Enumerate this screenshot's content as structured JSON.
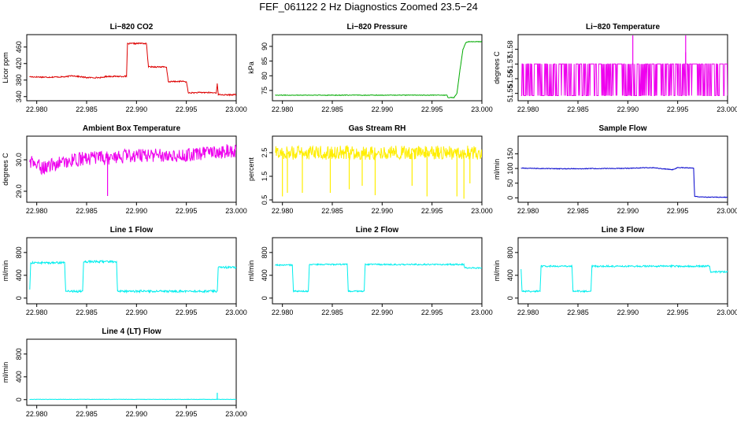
{
  "figure": {
    "title": "FEF_061122  2 Hz Diagnostics Zoomed 23.5−24"
  },
  "chart_data": [
    {
      "type": "line",
      "title": "Li−820 CO2",
      "ylabel": "Licor ppm",
      "color": "#dd0000",
      "xlim": [
        22.979,
        23.0
      ],
      "ylim": [
        330,
        490
      ],
      "xticks": [
        22.98,
        22.985,
        22.99,
        22.995,
        23.0
      ],
      "xtick_labels": [
        "22.980",
        "22.985",
        "22.990",
        "22.995",
        "23.000"
      ],
      "yticks": [
        340,
        380,
        420,
        460
      ],
      "ytick_labels": [
        "340",
        "380",
        "420",
        "460"
      ],
      "series": [
        {
          "x": [
            22.9793,
            22.981,
            22.983,
            22.9835,
            22.985,
            22.9865,
            22.987,
            22.989,
            22.9891,
            22.9905,
            22.991,
            22.9912,
            22.9925,
            22.993,
            22.9932,
            22.9945,
            22.995,
            22.9952,
            22.9968,
            22.998,
            22.9981,
            22.9982,
            22.999,
            23.0
          ],
          "y": [
            388,
            387,
            388,
            391,
            386,
            386,
            389,
            389,
            468,
            469,
            468,
            412,
            412,
            411,
            376,
            377,
            376,
            349,
            350,
            349,
            372,
            345,
            344,
            345
          ],
          "noise": 1.5
        }
      ]
    },
    {
      "type": "line",
      "title": "Li−820 Pressure",
      "ylabel": "kPa",
      "color": "#00aa00",
      "xlim": [
        22.979,
        23.0
      ],
      "ylim": [
        71.5,
        94
      ],
      "xticks": [
        22.98,
        22.985,
        22.99,
        22.995,
        23.0
      ],
      "xtick_labels": [
        "22.980",
        "22.985",
        "22.990",
        "22.995",
        "23.000"
      ],
      "yticks": [
        75,
        80,
        85,
        90
      ],
      "ytick_labels": [
        "75",
        "80",
        "85",
        "90"
      ],
      "series": [
        {
          "x": [
            22.9793,
            22.9965,
            22.9966,
            22.9972,
            22.9975,
            22.9978,
            22.9981,
            22.9984,
            22.9987,
            23.0
          ],
          "y": [
            73.4,
            73.4,
            72.6,
            72.6,
            74.0,
            82.0,
            89.0,
            91.3,
            91.6,
            91.6
          ],
          "noise": 0.1
        }
      ]
    },
    {
      "type": "line",
      "title": "Li−820 Temperature",
      "ylabel": "degrees C",
      "color": "#ee00ee",
      "xlim": [
        22.979,
        23.0
      ],
      "ylim": [
        51.545,
        51.59
      ],
      "xticks": [
        22.98,
        22.985,
        22.99,
        22.995,
        23.0
      ],
      "xtick_labels": [
        "22.980",
        "22.985",
        "22.990",
        "22.995",
        "23.000"
      ],
      "yticks": [
        51.55,
        51.56,
        51.57,
        51.58
      ],
      "ytick_labels": [
        "51.55",
        "51.56",
        "51.57",
        "51.58"
      ],
      "series": [
        {
          "x": [
            22.9793,
            23.0
          ],
          "y": [
            51.57,
            51.57
          ],
          "flicker_low": 51.5485,
          "spikes": [
            [
              22.9905,
              51.5895
            ],
            [
              22.9958,
              51.5895
            ],
            [
              22.9958,
              51.578
            ]
          ]
        }
      ]
    },
    {
      "type": "line",
      "title": "Ambient Box Temperature",
      "ylabel": "degrees C",
      "color": "#ee00ee",
      "xlim": [
        22.979,
        23.0
      ],
      "ylim": [
        28.65,
        30.75
      ],
      "xticks": [
        22.98,
        22.985,
        22.99,
        22.995,
        23.0
      ],
      "xtick_labels": [
        "22.980",
        "22.985",
        "22.990",
        "22.995",
        "23.000"
      ],
      "yticks": [
        29.0,
        30.0
      ],
      "ytick_labels": [
        "29.0",
        "30.0"
      ],
      "series": [
        {
          "x": [
            22.9793,
            22.9805,
            22.983,
            22.985,
            22.987,
            22.99,
            22.995,
            23.0
          ],
          "y": [
            29.95,
            29.75,
            29.95,
            30.05,
            30.05,
            30.15,
            30.15,
            30.3
          ],
          "noise": 0.22,
          "spikes": [
            [
              22.9871,
              28.85
            ]
          ]
        }
      ]
    },
    {
      "type": "line",
      "title": "Gas Stream RH",
      "ylabel": "percent",
      "color": "#ffee00",
      "xlim": [
        22.979,
        23.0
      ],
      "ylim": [
        0.4,
        3.2
      ],
      "xticks": [
        22.98,
        22.985,
        22.99,
        22.995,
        23.0
      ],
      "xtick_labels": [
        "22.980",
        "22.985",
        "22.990",
        "22.995",
        "23.000"
      ],
      "yticks": [
        0.5,
        1.5,
        2.5
      ],
      "ytick_labels": [
        "0.5",
        "1.5",
        "2.5"
      ],
      "series": [
        {
          "x": [
            22.9793,
            23.0
          ],
          "y": [
            2.5,
            2.5
          ],
          "noise": 0.3,
          "spikes": [
            [
              22.98,
              0.65
            ],
            [
              22.9805,
              0.8
            ],
            [
              22.982,
              0.8
            ],
            [
              22.9848,
              0.8
            ],
            [
              22.9867,
              0.95
            ],
            [
              22.988,
              1.1
            ],
            [
              22.9893,
              0.7
            ],
            [
              22.993,
              1.1
            ],
            [
              22.9945,
              0.65
            ],
            [
              22.9975,
              0.65
            ],
            [
              22.9982,
              0.55
            ],
            [
              22.9988,
              1.2
            ]
          ]
        }
      ]
    },
    {
      "type": "line",
      "title": "Sample Flow",
      "ylabel": "ml/min",
      "color": "#0000cc",
      "xlim": [
        22.979,
        23.0
      ],
      "ylim": [
        -15,
        210
      ],
      "xticks": [
        22.98,
        22.985,
        22.99,
        22.995,
        23.0
      ],
      "xtick_labels": [
        "22.980",
        "22.985",
        "22.990",
        "22.995",
        "23.000"
      ],
      "yticks": [
        0,
        50,
        100,
        150
      ],
      "ytick_labels": [
        "0",
        "50",
        "100",
        "150"
      ],
      "series": [
        {
          "x": [
            22.9793,
            22.983,
            22.989,
            22.9925,
            22.9932,
            22.9945,
            22.995,
            22.9966,
            22.9967,
            22.9972,
            23.0
          ],
          "y": [
            101,
            99,
            100,
            103,
            100,
            96,
            103,
            102,
            5,
            3,
            2
          ],
          "noise": 1.2
        }
      ]
    },
    {
      "type": "line",
      "title": "Line 1 Flow",
      "ylabel": "ml/min",
      "color": "#00eeee",
      "xlim": [
        22.979,
        23.0
      ],
      "ylim": [
        -100,
        1060
      ],
      "xticks": [
        22.98,
        22.985,
        22.99,
        22.995,
        23.0
      ],
      "xtick_labels": [
        "22.980",
        "22.985",
        "22.990",
        "22.995",
        "23.000"
      ],
      "yticks": [
        0,
        400,
        800
      ],
      "ytick_labels": [
        "0",
        "400",
        "800"
      ],
      "series": [
        {
          "x": [
            22.9793,
            22.9794,
            22.9828,
            22.9829,
            22.9846,
            22.9847,
            22.988,
            22.9881,
            22.9981,
            22.9982,
            23.0
          ],
          "y": [
            150,
            620,
            620,
            120,
            120,
            640,
            640,
            120,
            120,
            540,
            540
          ],
          "noise": 18
        }
      ]
    },
    {
      "type": "line",
      "title": "Line 2 Flow",
      "ylabel": "ml/min",
      "color": "#00eeee",
      "xlim": [
        22.979,
        23.0
      ],
      "ylim": [
        -100,
        1060
      ],
      "xticks": [
        22.98,
        22.985,
        22.99,
        22.995,
        23.0
      ],
      "xtick_labels": [
        "22.980",
        "22.985",
        "22.990",
        "22.995",
        "23.000"
      ],
      "yticks": [
        0,
        400,
        800
      ],
      "ytick_labels": [
        "0",
        "400",
        "800"
      ],
      "series": [
        {
          "x": [
            22.9793,
            22.981,
            22.9811,
            22.9826,
            22.9827,
            22.9865,
            22.9866,
            22.9882,
            22.9883,
            22.9982,
            22.9983,
            23.0
          ],
          "y": [
            580,
            580,
            120,
            120,
            590,
            590,
            120,
            120,
            590,
            590,
            530,
            530
          ],
          "noise": 12
        }
      ]
    },
    {
      "type": "line",
      "title": "Line 3 Flow",
      "ylabel": "ml/min",
      "color": "#00eeee",
      "xlim": [
        22.979,
        23.0
      ],
      "ylim": [
        -100,
        1060
      ],
      "xticks": [
        22.98,
        22.985,
        22.99,
        22.995,
        23.0
      ],
      "xtick_labels": [
        "22.980",
        "22.985",
        "22.990",
        "22.995",
        "23.000"
      ],
      "yticks": [
        0,
        400,
        800
      ],
      "ytick_labels": [
        "0",
        "400",
        "800"
      ],
      "series": [
        {
          "x": [
            22.9793,
            22.9794,
            22.9795,
            22.9812,
            22.9813,
            22.9844,
            22.9845,
            22.9863,
            22.9864,
            22.9982,
            22.9983,
            23.0
          ],
          "y": [
            500,
            120,
            120,
            120,
            560,
            560,
            120,
            120,
            560,
            560,
            460,
            460
          ],
          "noise": 14
        }
      ]
    },
    {
      "type": "line",
      "title": "Line 4 (LT) Flow",
      "ylabel": "ml/min",
      "color": "#00eeee",
      "xlim": [
        22.979,
        23.0
      ],
      "ylim": [
        -100,
        1060
      ],
      "xticks": [
        22.98,
        22.985,
        22.99,
        22.995,
        23.0
      ],
      "xtick_labels": [
        "22.980",
        "22.985",
        "22.990",
        "22.995",
        "23.000"
      ],
      "yticks": [
        0,
        400,
        800
      ],
      "ytick_labels": [
        "0",
        "400",
        "800"
      ],
      "series": [
        {
          "x": [
            22.9793,
            23.0
          ],
          "y": [
            5,
            5
          ],
          "noise": 3,
          "spikes": [
            [
              22.9981,
              120
            ]
          ]
        }
      ]
    }
  ]
}
